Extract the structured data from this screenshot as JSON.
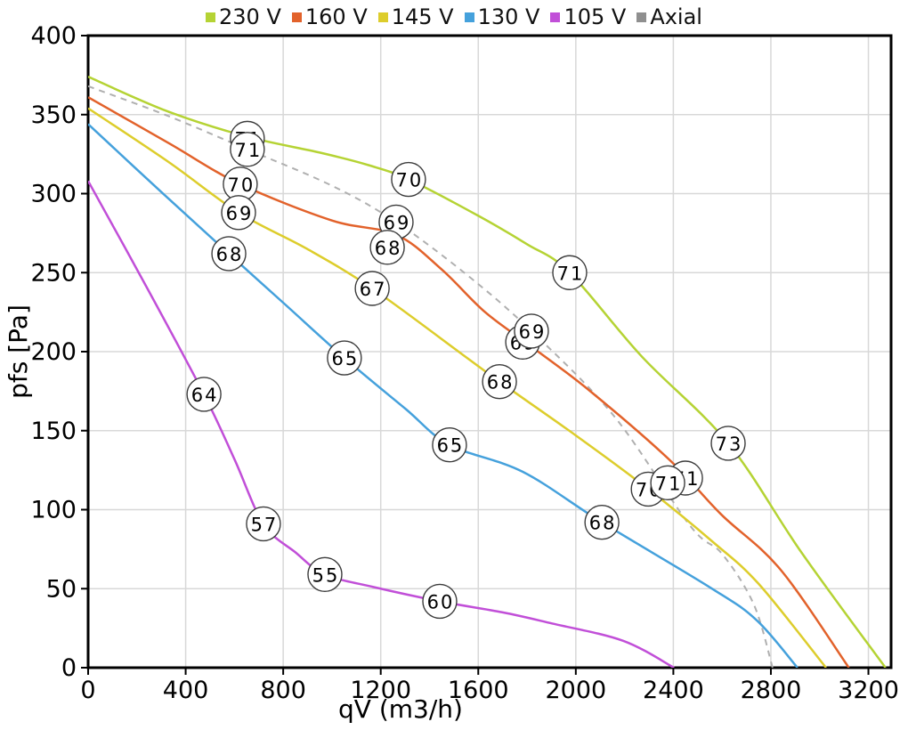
{
  "chart_data": {
    "type": "line",
    "title": "",
    "xlabel": "qV (m3/h)",
    "ylabel": "pfs [Pa]",
    "xlim": [
      0,
      3293
    ],
    "ylim": [
      0,
      400
    ],
    "x_ticks": [
      0,
      400,
      800,
      1200,
      1600,
      2000,
      2400,
      2800,
      3200
    ],
    "y_ticks": [
      0,
      50,
      100,
      150,
      200,
      250,
      300,
      350,
      400
    ],
    "grid": true,
    "legend_position": "top-center",
    "style": {
      "grid_color": "#d8d8d8",
      "axis_color": "#000000",
      "circle_stroke": "#3c3c3c",
      "circle_fill": "#ffffff",
      "text_color": "#000000",
      "axial_dash": [
        7,
        6
      ]
    },
    "series": [
      {
        "name": "230 V",
        "color": "#b5d334",
        "dashed": false,
        "points": [
          [
            0,
            374
          ],
          [
            327,
            352
          ],
          [
            653,
            336
          ],
          [
            950,
            326
          ],
          [
            1150,
            318
          ],
          [
            1314,
            309
          ],
          [
            1600,
            286
          ],
          [
            1800,
            268
          ],
          [
            1975,
            250
          ],
          [
            2270,
            197
          ],
          [
            2625,
            142
          ],
          [
            2925,
            73
          ],
          [
            3270,
            0
          ]
        ]
      },
      {
        "name": "160 V",
        "color": "#e2622b",
        "dashed": false,
        "points": [
          [
            0,
            361
          ],
          [
            330,
            332
          ],
          [
            624,
            306
          ],
          [
            1000,
            283
          ],
          [
            1263,
            274
          ],
          [
            1450,
            252
          ],
          [
            1628,
            225
          ],
          [
            1820,
            203
          ],
          [
            2059,
            175
          ],
          [
            2388,
            131
          ],
          [
            2596,
            97
          ],
          [
            2840,
            62
          ],
          [
            3120,
            0
          ]
        ]
      },
      {
        "name": "145 V",
        "color": "#ddcd2c",
        "dashed": false,
        "points": [
          [
            0,
            354
          ],
          [
            330,
            320
          ],
          [
            617,
            288
          ],
          [
            898,
            265
          ],
          [
            1165,
            240
          ],
          [
            1537,
            198
          ],
          [
            1687,
            181
          ],
          [
            2000,
            147
          ],
          [
            2297,
            113
          ],
          [
            2559,
            80
          ],
          [
            2750,
            53
          ],
          [
            3026,
            0
          ]
        ]
      },
      {
        "name": "130 V",
        "color": "#45a1dc",
        "dashed": false,
        "points": [
          [
            0,
            344
          ],
          [
            300,
            301
          ],
          [
            577,
            262
          ],
          [
            800,
            231
          ],
          [
            1051,
            196
          ],
          [
            1300,
            164
          ],
          [
            1482,
            141
          ],
          [
            1782,
            124
          ],
          [
            2107,
            92
          ],
          [
            2559,
            50
          ],
          [
            2742,
            30
          ],
          [
            2909,
            0
          ]
        ]
      },
      {
        "name": "105 V",
        "color": "#c14fd8",
        "dashed": false,
        "points": [
          [
            0,
            308
          ],
          [
            250,
            238
          ],
          [
            475,
            173
          ],
          [
            600,
            132
          ],
          [
            719,
            91
          ],
          [
            850,
            73
          ],
          [
            971,
            59
          ],
          [
            1172,
            51
          ],
          [
            1442,
            42
          ],
          [
            1700,
            35
          ],
          [
            1902,
            28
          ],
          [
            2194,
            17
          ],
          [
            2403,
            0
          ]
        ]
      },
      {
        "name": "Axial",
        "color": "#b0b0b0",
        "legend_color": "#8f8f8f",
        "dashed": true,
        "points": [
          [
            0,
            368
          ],
          [
            330,
            349
          ],
          [
            653,
            328
          ],
          [
            1000,
            305
          ],
          [
            1263,
            282
          ],
          [
            1550,
            249
          ],
          [
            1818,
            213
          ],
          [
            2158,
            159
          ],
          [
            2468,
            90
          ],
          [
            2600,
            72
          ],
          [
            2730,
            40
          ],
          [
            2807,
            0
          ]
        ]
      }
    ],
    "point_labels": [
      {
        "text": "71",
        "qv": 653,
        "pfs": 335,
        "series": "230 V"
      },
      {
        "text": "71",
        "qv": 653,
        "pfs": 328,
        "series": "Axial"
      },
      {
        "text": "70",
        "qv": 624,
        "pfs": 306,
        "series": "160 V"
      },
      {
        "text": "69",
        "qv": 617,
        "pfs": 288,
        "series": "145 V"
      },
      {
        "text": "68",
        "qv": 577,
        "pfs": 262,
        "series": "130 V"
      },
      {
        "text": "64",
        "qv": 475,
        "pfs": 173,
        "series": "105 V"
      },
      {
        "text": "57",
        "qv": 719,
        "pfs": 91,
        "series": "105 V"
      },
      {
        "text": "55",
        "qv": 971,
        "pfs": 59,
        "series": "105 V"
      },
      {
        "text": "60",
        "qv": 1442,
        "pfs": 42,
        "series": "105 V"
      },
      {
        "text": "65",
        "qv": 1051,
        "pfs": 196,
        "series": "130 V"
      },
      {
        "text": "65",
        "qv": 1482,
        "pfs": 141,
        "series": "130 V"
      },
      {
        "text": "68",
        "qv": 2107,
        "pfs": 92,
        "series": "130 V"
      },
      {
        "text": "70",
        "qv": 1314,
        "pfs": 309,
        "series": "230 V"
      },
      {
        "text": "69",
        "qv": 1263,
        "pfs": 282,
        "series": "Axial"
      },
      {
        "text": "68",
        "qv": 1227,
        "pfs": 266,
        "series": "160 V"
      },
      {
        "text": "67",
        "qv": 1165,
        "pfs": 240,
        "series": "145 V"
      },
      {
        "text": "68",
        "qv": 1687,
        "pfs": 181,
        "series": "145 V"
      },
      {
        "text": "69",
        "qv": 1782,
        "pfs": 206,
        "series": "160 V"
      },
      {
        "text": "69",
        "qv": 1818,
        "pfs": 213,
        "series": "Axial"
      },
      {
        "text": "71",
        "qv": 1975,
        "pfs": 250,
        "series": "230 V"
      },
      {
        "text": "70",
        "qv": 2297,
        "pfs": 113,
        "series": "145 V"
      },
      {
        "text": "71",
        "qv": 2450,
        "pfs": 120,
        "series": "160 V"
      },
      {
        "text": "71",
        "qv": 2377,
        "pfs": 117,
        "series": "Axial"
      },
      {
        "text": "73",
        "qv": 2625,
        "pfs": 142,
        "series": "230 V"
      }
    ]
  }
}
